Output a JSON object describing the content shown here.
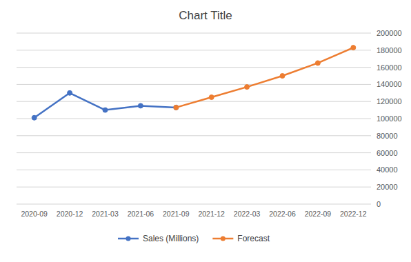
{
  "chart_data": {
    "type": "line",
    "title": "Chart Title",
    "categories": [
      "2020-09",
      "2020-12",
      "2021-03",
      "2021-06",
      "2021-09",
      "2021-12",
      "2022-03",
      "2022-06",
      "2022-09",
      "2022-12"
    ],
    "series": [
      {
        "name": "Sales (Millions)",
        "color": "#4472c4",
        "marker": "circle",
        "values": [
          101000,
          130000,
          110000,
          115000,
          113000,
          null,
          null,
          null,
          null,
          null
        ]
      },
      {
        "name": "Forecast",
        "color": "#ed7d31",
        "marker": "circle",
        "values": [
          null,
          null,
          null,
          null,
          113000,
          125000,
          137000,
          150000,
          165000,
          183000
        ]
      }
    ],
    "ylim": [
      0,
      200000
    ],
    "yticks": [
      0,
      20000,
      40000,
      60000,
      80000,
      100000,
      120000,
      140000,
      160000,
      180000,
      200000
    ],
    "grid": true,
    "legend": "bottom"
  }
}
